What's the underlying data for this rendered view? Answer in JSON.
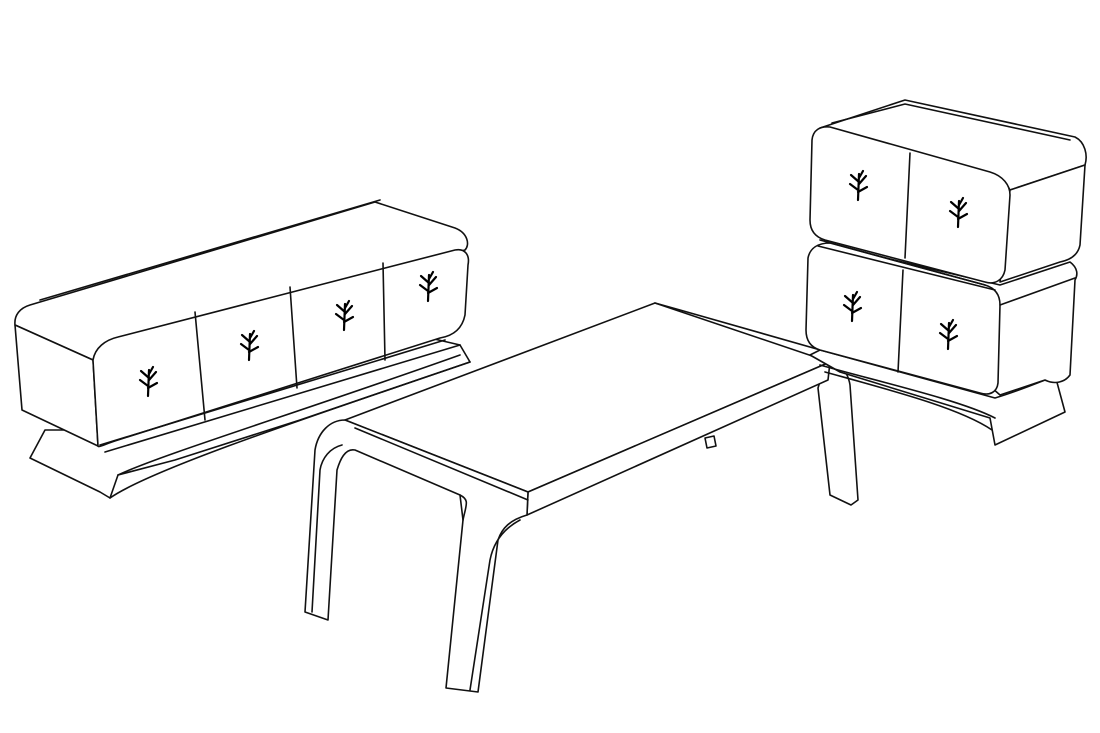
{
  "scene": {
    "objects": [
      "sideboard",
      "coffee-table",
      "stacked-cabinets"
    ],
    "line_color": "#111111",
    "background": "#ffffff"
  },
  "sideboard": {
    "door_count": 4,
    "ornament_icon": "leaf-sprig-icon"
  },
  "cabinet_top": {
    "door_count": 2,
    "ornament_icon": "leaf-sprig-icon"
  },
  "cabinet_bottom": {
    "door_count": 2,
    "ornament_icon": "leaf-sprig-icon"
  }
}
